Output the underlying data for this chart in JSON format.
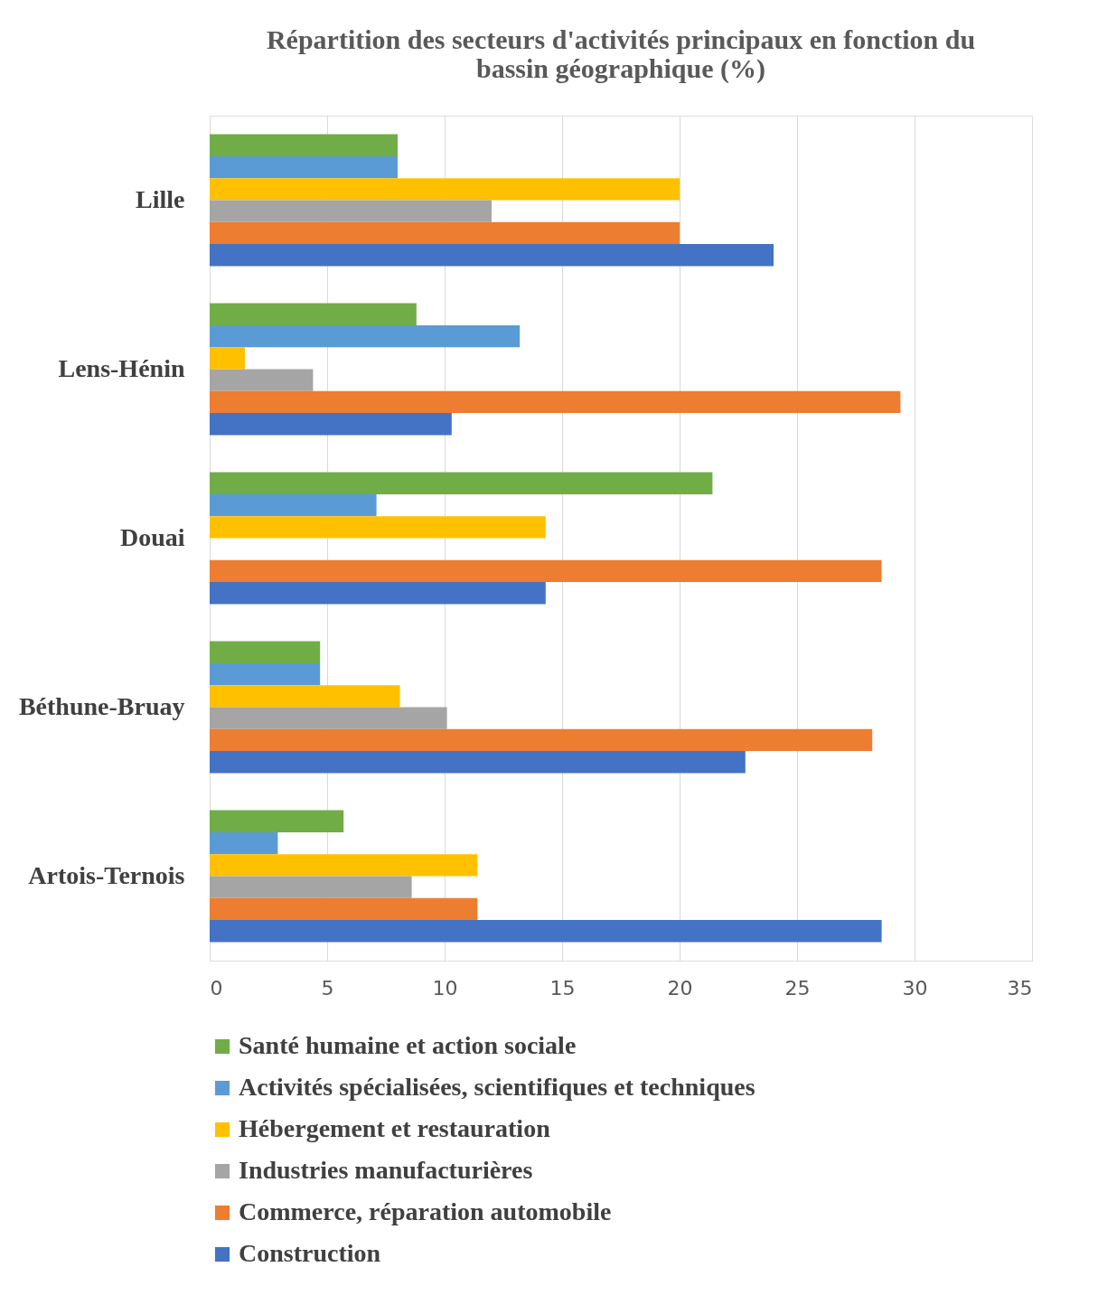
{
  "chart_data": {
    "type": "bar",
    "orientation": "horizontal",
    "title": "Répartition des secteurs d'activités principaux en fonction du bassin géographique (%)",
    "categories": [
      "Lille",
      "Lens-Hénin",
      "Douai",
      "Béthune-Bruay",
      "Artois-Ternois"
    ],
    "series": [
      {
        "name": "Santé humaine et action sociale",
        "color": "#70ad47",
        "values": [
          8,
          8.8,
          21.4,
          4.7,
          5.7
        ]
      },
      {
        "name": "Activités spécialisées, scientifiques et techniques",
        "color": "#5b9bd5",
        "values": [
          8,
          13.2,
          7.1,
          4.7,
          2.9
        ]
      },
      {
        "name": "Hébergement et restauration",
        "color": "#ffc000",
        "values": [
          20,
          1.5,
          14.3,
          8.1,
          11.4
        ]
      },
      {
        "name": "Industries manufacturières",
        "color": "#a5a5a5",
        "values": [
          12,
          4.4,
          null,
          10.1,
          8.6
        ]
      },
      {
        "name": "Commerce, réparation automobile",
        "color": "#ed7d31",
        "values": [
          20,
          29.4,
          28.6,
          28.2,
          11.4
        ]
      },
      {
        "name": "Construction",
        "color": "#4472c4",
        "values": [
          24,
          10.3,
          14.3,
          22.8,
          28.6
        ]
      }
    ],
    "xlim": [
      0,
      35
    ],
    "xticks": [
      0,
      5,
      10,
      15,
      20,
      25,
      30,
      35
    ],
    "grid": "x",
    "legend": "bottom"
  }
}
